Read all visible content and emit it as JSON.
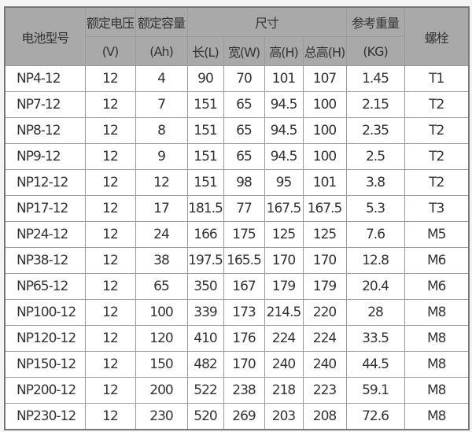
{
  "header": {
    "model": "电池型号",
    "voltage": "额定电压",
    "voltage_unit": "(V)",
    "capacity": "额定容量",
    "capacity_unit": "(Ah)",
    "size": "尺寸",
    "length": "长(L)",
    "width": "宽(W)",
    "height": "高(H)",
    "total_height": "总高(H)",
    "weight": "参考重量",
    "weight_unit": "(KG)",
    "bolt": "螺栓"
  },
  "rows": [
    [
      "NP4-12",
      "12",
      "4",
      "90",
      "70",
      "101",
      "107",
      "1.45",
      "T1"
    ],
    [
      "NP7-12",
      "12",
      "7",
      "151",
      "65",
      "94.5",
      "100",
      "2.15",
      "T2"
    ],
    [
      "NP8-12",
      "12",
      "8",
      "151",
      "65",
      "94.5",
      "100",
      "2.35",
      "T2"
    ],
    [
      "NP9-12",
      "12",
      "9",
      "151",
      "65",
      "94.5",
      "100",
      "2.5",
      "T2"
    ],
    [
      "NP12-12",
      "12",
      "12",
      "151",
      "98",
      "95",
      "101",
      "3.8",
      "T2"
    ],
    [
      "NP17-12",
      "12",
      "17",
      "181.5",
      "77",
      "167.5",
      "167.5",
      "5.3",
      "T3"
    ],
    [
      "NP24-12",
      "12",
      "24",
      "166",
      "175",
      "125",
      "125",
      "7.6",
      "M5"
    ],
    [
      "NP38-12",
      "12",
      "38",
      "197.5",
      "165.5",
      "170",
      "170",
      "12.8",
      "M6"
    ],
    [
      "NP65-12",
      "12",
      "65",
      "350",
      "167",
      "179",
      "179",
      "20.4",
      "M6"
    ],
    [
      "NP100-12",
      "12",
      "100",
      "339",
      "173",
      "214.5",
      "220",
      "28",
      "M8"
    ],
    [
      "NP120-12",
      "12",
      "120",
      "410",
      "176",
      "224",
      "224",
      "33.5",
      "M8"
    ],
    [
      "NP150-12",
      "12",
      "150",
      "482",
      "170",
      "240",
      "240",
      "44.5",
      "M8"
    ],
    [
      "NP200-12",
      "12",
      "200",
      "522",
      "238",
      "218",
      "223",
      "59.1",
      "M8"
    ],
    [
      "NP230-12",
      "12",
      "230",
      "520",
      "269",
      "203",
      "208",
      "72.6",
      "M8"
    ]
  ]
}
